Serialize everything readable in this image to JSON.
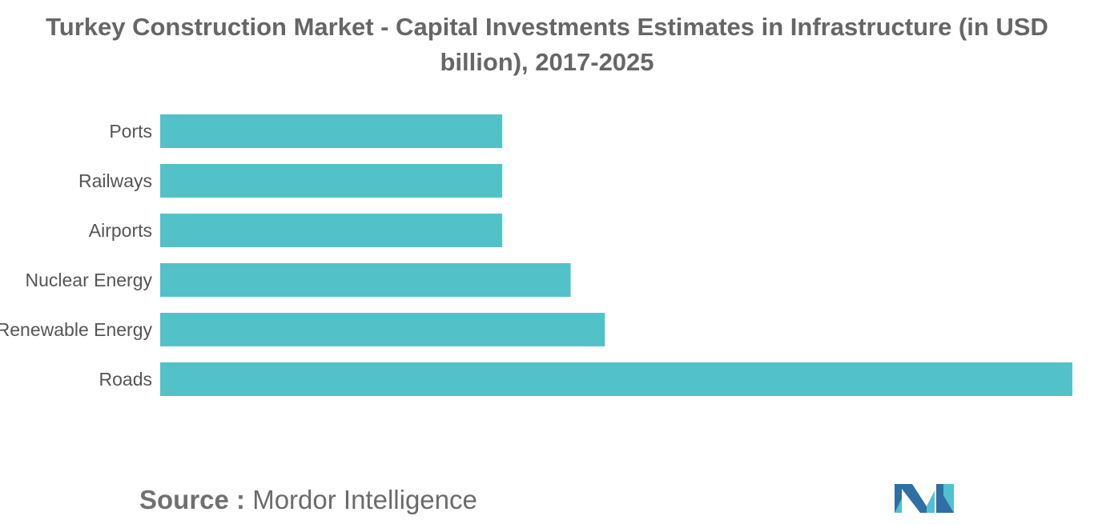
{
  "chart_data": {
    "type": "bar",
    "orientation": "horizontal",
    "title": "Turkey Construction Market - Capital Investments Estimates in Infrastructure (in USD billion), 2017-2025",
    "categories": [
      "Ports",
      "Railways",
      "Airports",
      "Nuclear Energy",
      "Renewable Energy",
      "Roads"
    ],
    "values": [
      15,
      15,
      15,
      18,
      19.5,
      40
    ],
    "xlim": [
      0,
      40
    ],
    "x_axis_visible": false,
    "grid": false,
    "legend": "none",
    "bar_color": "#52c2c8"
  },
  "source": {
    "label": "Source :",
    "name": "Mordor Intelligence"
  },
  "logo": {
    "icon": "mordor-intelligence-logo",
    "colors": [
      "#2f6fa3",
      "#4fc1d0"
    ]
  }
}
